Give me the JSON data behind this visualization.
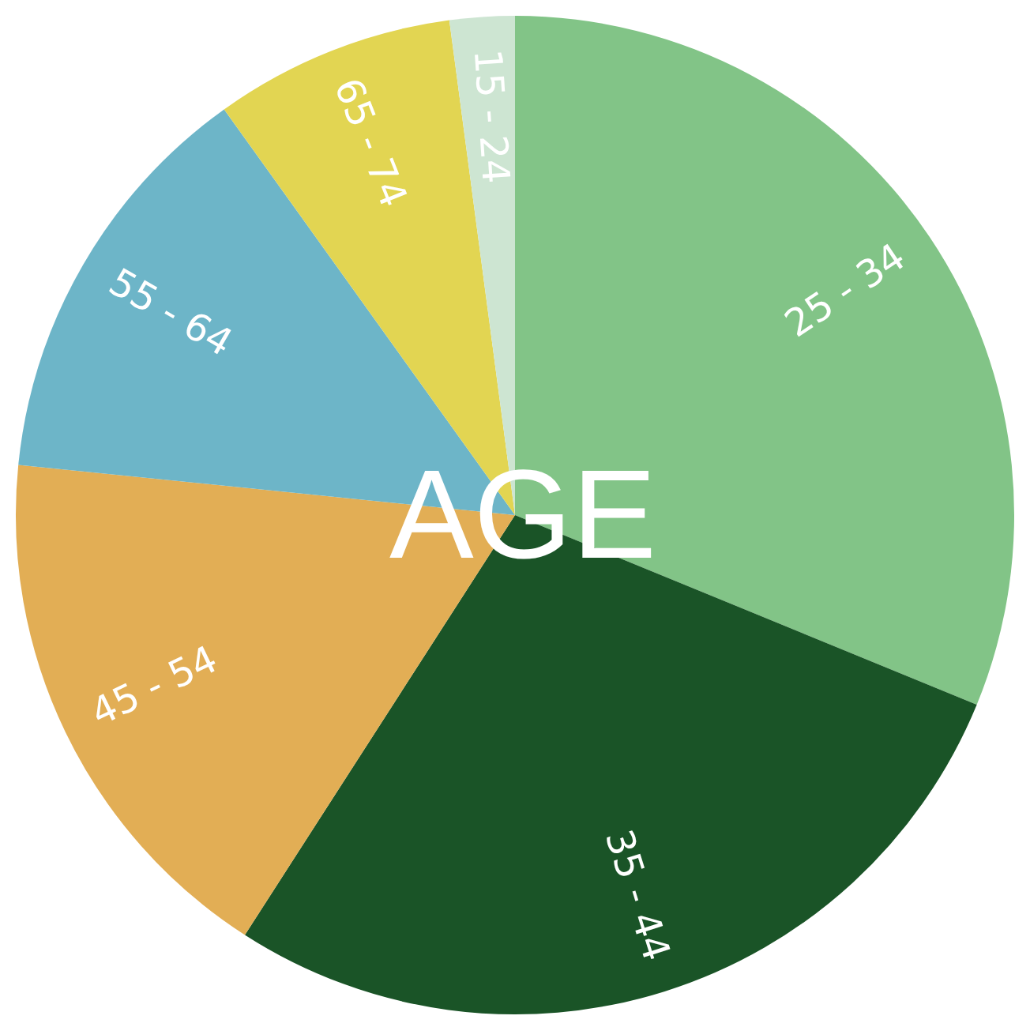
{
  "chart_data": {
    "type": "pie",
    "title": "AGE",
    "categories": [
      "25 - 34",
      "35 - 44",
      "45 - 54",
      "55 - 64",
      "65 - 74",
      "15 - 24"
    ],
    "values": [
      31.2,
      27.9,
      17.5,
      13.5,
      7.8,
      2.1
    ],
    "colors": [
      "#82c487",
      "#1a5427",
      "#e2ae55",
      "#6db5c8",
      "#e2d552",
      "#cde5d2"
    ]
  }
}
